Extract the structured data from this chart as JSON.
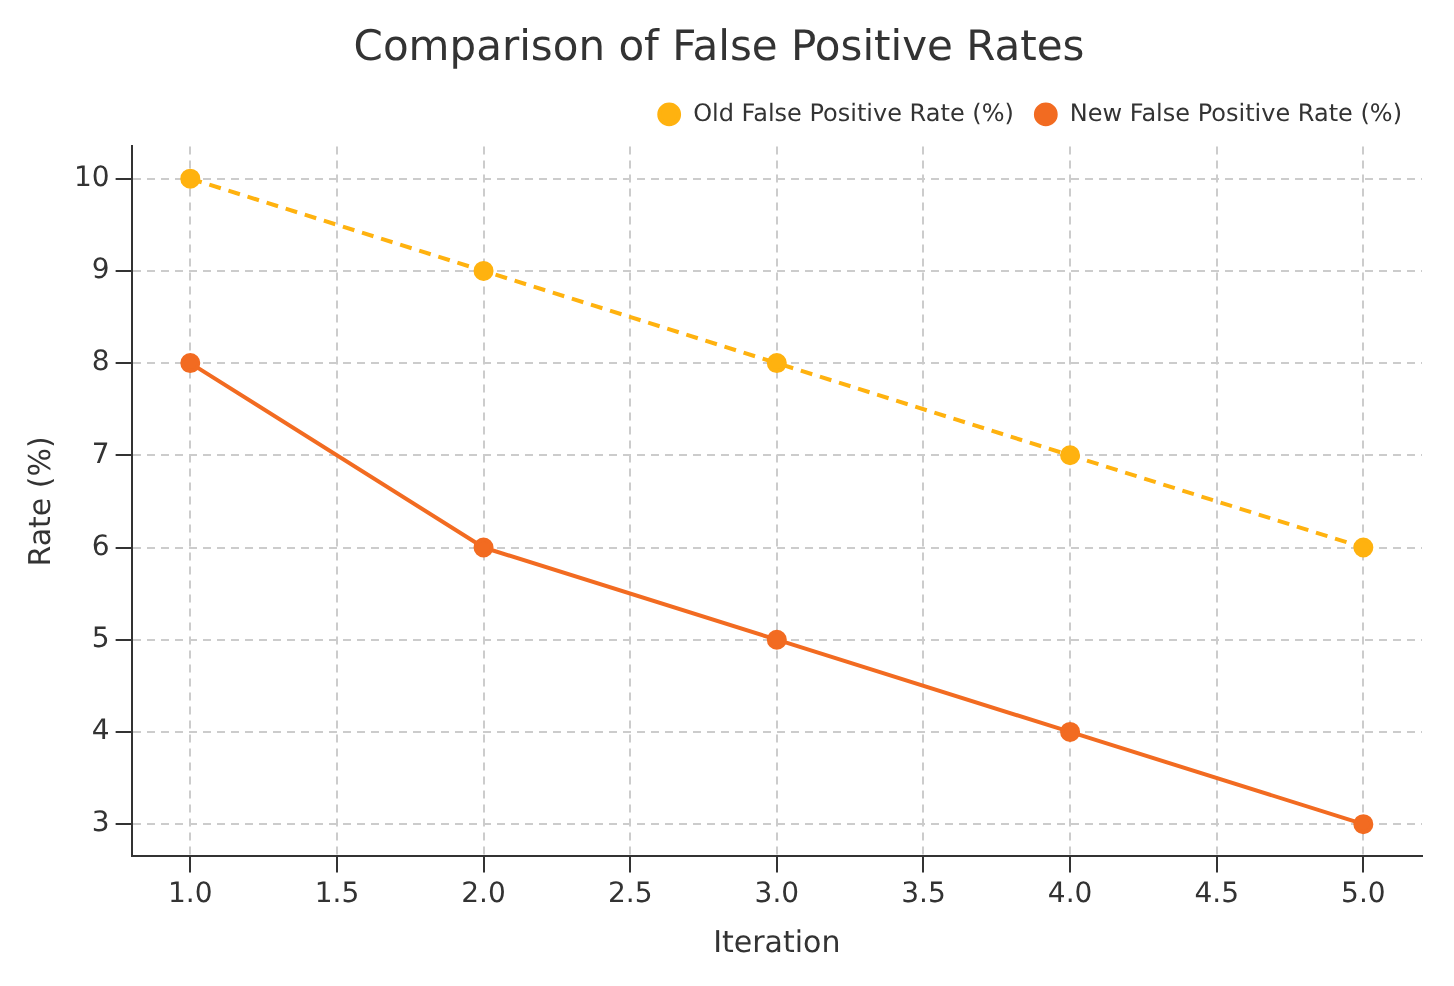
{
  "chart_data": {
    "type": "line",
    "title": "Comparison of False Positive Rates",
    "xlabel": "Iteration",
    "ylabel": "Rate (%)",
    "x": [
      1,
      2,
      3,
      4,
      5
    ],
    "series": [
      {
        "name": "Old False Positive Rate (%)",
        "color": "#ffb20f",
        "values": [
          10,
          9,
          8,
          7,
          6
        ],
        "line_style": "dashed"
      },
      {
        "name": "New False Positive Rate (%)",
        "color": "#f26b21",
        "values": [
          8,
          6,
          5,
          4,
          3
        ],
        "line_style": "solid"
      }
    ],
    "xlim": [
      0.8,
      5.2
    ],
    "xticks": [
      {
        "value": 1,
        "label": "1.0"
      },
      {
        "value": 1.5,
        "label": "1.5"
      },
      {
        "value": 2,
        "label": "2.0"
      },
      {
        "value": 2.5,
        "label": "2.5"
      },
      {
        "value": 3,
        "label": "3.0"
      },
      {
        "value": 3.5,
        "label": "3.5"
      },
      {
        "value": 4,
        "label": "4.0"
      },
      {
        "value": 4.5,
        "label": "4.5"
      },
      {
        "value": 5,
        "label": "5.0"
      }
    ],
    "ylim": [
      2.65,
      10.35
    ],
    "yticks": [
      3,
      4,
      5,
      6,
      7,
      8,
      9,
      10
    ],
    "grid": true,
    "legend": "top right",
    "marker": "circle"
  }
}
